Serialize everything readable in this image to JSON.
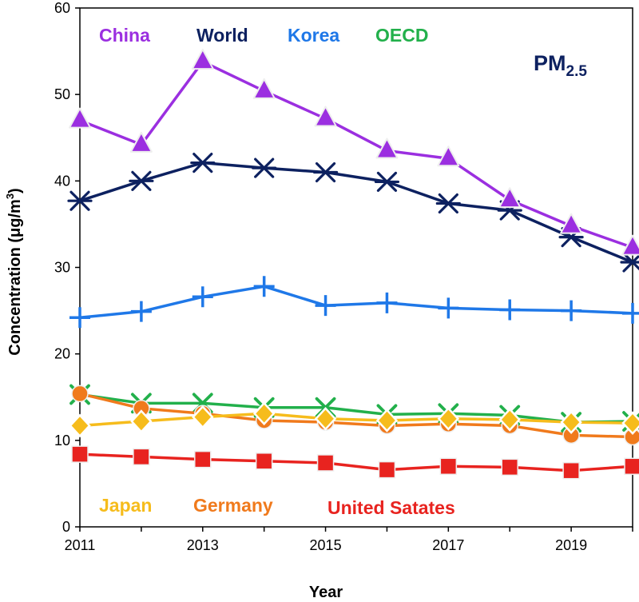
{
  "chart_data": {
    "type": "line",
    "title": "PM2.5",
    "title_main": "PM",
    "title_sub": "2.5",
    "xlabel": "Year",
    "ylabel": "Concentration (μg/m",
    "ylabel_sup": "3",
    "ylabel_close": ")",
    "xlim": [
      2011,
      2020
    ],
    "ylim": [
      0,
      60
    ],
    "x_ticks": [
      "2011",
      "2013",
      "2015",
      "2017",
      "2019"
    ],
    "y_ticks": [
      "0",
      "10",
      "20",
      "30",
      "40",
      "50",
      "60"
    ],
    "x": [
      2011,
      2012,
      2013,
      2014,
      2015,
      2016,
      2017,
      2018,
      2019,
      2020
    ],
    "series": [
      {
        "name": "China",
        "color": "#9b2fe0",
        "marker": "triangle",
        "values": [
          47.0,
          44.2,
          53.8,
          50.4,
          47.2,
          43.5,
          42.6,
          37.8,
          34.8,
          32.3
        ]
      },
      {
        "name": "World",
        "color": "#0d2160",
        "marker": "asterisk",
        "values": [
          37.7,
          40.0,
          42.1,
          41.5,
          41.0,
          39.9,
          37.4,
          36.6,
          33.5,
          30.6
        ]
      },
      {
        "name": "Korea",
        "color": "#1f78e8",
        "marker": "plus",
        "values": [
          24.2,
          24.9,
          26.6,
          27.8,
          25.6,
          25.9,
          25.3,
          25.1,
          25.0,
          24.7
        ]
      },
      {
        "name": "OECD",
        "color": "#22b04b",
        "marker": "x",
        "values": [
          15.3,
          14.3,
          14.3,
          13.8,
          13.8,
          13.0,
          13.1,
          12.9,
          12.1,
          12.2
        ]
      },
      {
        "name": "Germany",
        "color": "#f07a1c",
        "marker": "circle",
        "values": [
          15.4,
          13.7,
          13.1,
          12.3,
          12.1,
          11.7,
          11.9,
          11.7,
          10.6,
          10.4
        ]
      },
      {
        "name": "Japan",
        "color": "#f6bc1c",
        "marker": "diamond",
        "values": [
          11.7,
          12.2,
          12.7,
          13.1,
          12.5,
          12.3,
          12.5,
          12.4,
          12.1,
          12.0
        ]
      },
      {
        "name": "United Satates",
        "color": "#e8231f",
        "marker": "square",
        "values": [
          8.4,
          8.1,
          7.8,
          7.6,
          7.4,
          6.6,
          7.0,
          6.9,
          6.5,
          7.0
        ]
      }
    ],
    "legend": {
      "top_labels": [
        "China",
        "World",
        "Korea",
        "OECD"
      ],
      "bottom_labels": [
        "Japan",
        "Germany",
        "United Satates"
      ],
      "placement": "inside-top and inside-bottom"
    },
    "grid": false
  }
}
